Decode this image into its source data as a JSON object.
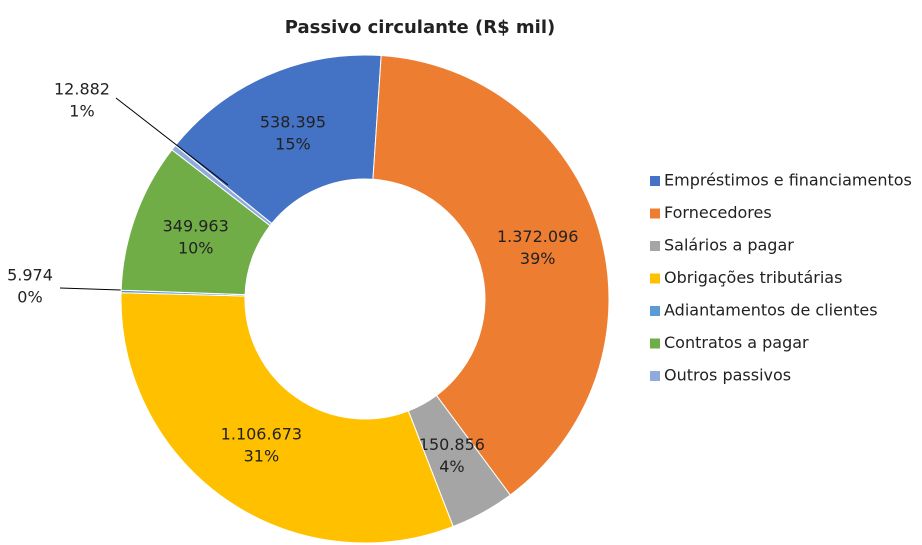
{
  "chart_data": {
    "type": "donut",
    "title": "Passivo circulante (R$ mil)",
    "categories": [
      "Empréstimos e financiamentos",
      "Fornecedores",
      "Salários a pagar",
      "Obrigações tributárias",
      "Adiantamentos de clientes",
      "Contratos a pagar",
      "Outros passivos"
    ],
    "values": [
      538395,
      1372096,
      150856,
      1106673,
      5974,
      349963,
      12882
    ],
    "value_labels": [
      "538.395",
      "1.372.096",
      "150.856",
      "1.106.673",
      "5.974",
      "349.963",
      "12.882"
    ],
    "percent_labels": [
      "15%",
      "39%",
      "4%",
      "31%",
      "0%",
      "10%",
      "1%"
    ],
    "colors": [
      "#4472c4",
      "#ed7d31",
      "#a5a5a5",
      "#ffc000",
      "#5b9bd5",
      "#70ad47",
      "#8faadc"
    ],
    "start_angle": 309,
    "legend": "right"
  }
}
